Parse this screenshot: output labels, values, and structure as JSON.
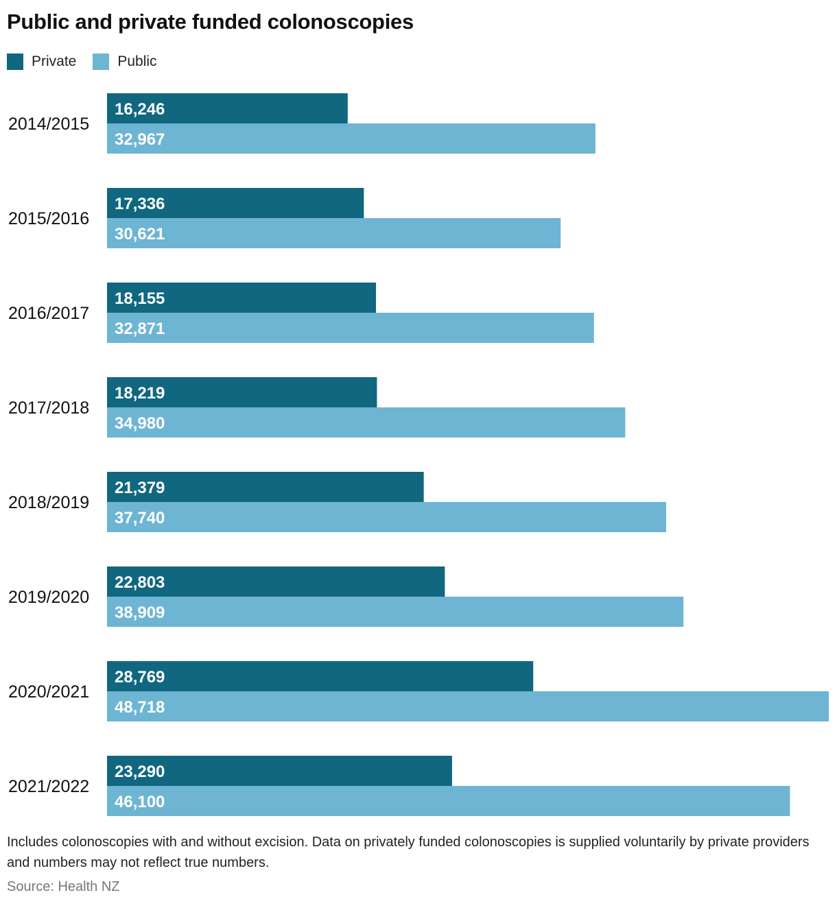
{
  "colors": {
    "private": "#10677f",
    "public": "#6db5d3"
  },
  "chart_data": {
    "type": "bar",
    "orientation": "horizontal",
    "title": "Public and private funded colonoscopies",
    "legend": [
      {
        "name": "Private",
        "color": "#10677f"
      },
      {
        "name": "Public",
        "color": "#6db5d3"
      }
    ],
    "categories": [
      "2014/2015",
      "2015/2016",
      "2016/2017",
      "2017/2018",
      "2018/2019",
      "2019/2020",
      "2020/2021",
      "2021/2022"
    ],
    "series": [
      {
        "name": "Private",
        "values": [
          16246,
          17336,
          18155,
          18219,
          21379,
          22803,
          28769,
          23290
        ]
      },
      {
        "name": "Public",
        "values": [
          32967,
          30621,
          32871,
          34980,
          37740,
          38909,
          48718,
          46100
        ]
      }
    ],
    "xlim": [
      0,
      48718
    ],
    "grid": false,
    "legend_position": "top-left"
  },
  "footnote": "Includes colonoscopies with and without excision. Data on privately funded colonoscopies is supplied voluntarily by private providers and numbers may not reflect true numbers.",
  "source": "Source: Health NZ"
}
